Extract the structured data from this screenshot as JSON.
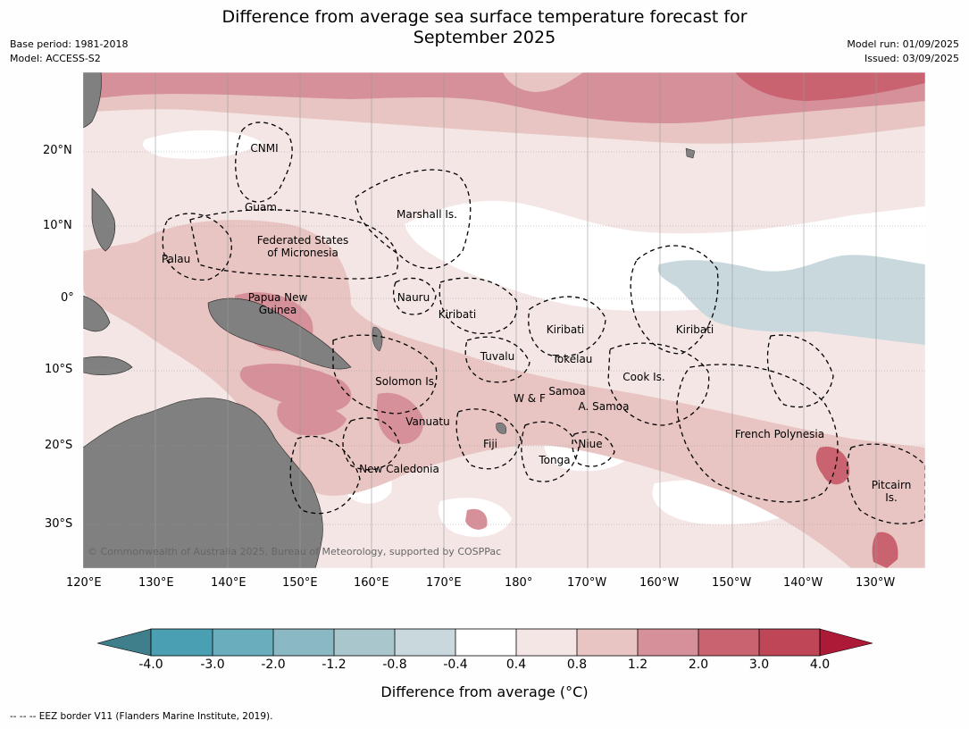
{
  "title_line1": "Difference from average sea surface temperature forecast for",
  "title_line2": "September 2025",
  "meta_left": {
    "base_period": "Base period: 1981-2018",
    "model": "Model: ACCESS-S2"
  },
  "meta_right": {
    "model_run": "Model run: 01/09/2025",
    "issued": "Issued: 03/09/2025"
  },
  "axes": {
    "lon_ticks": [
      "120°E",
      "130°E",
      "140°E",
      "150°E",
      "160°E",
      "170°E",
      "180°",
      "170°W",
      "160°W",
      "150°W",
      "140°W",
      "130°W"
    ],
    "lat_ticks": [
      "20°N",
      "10°N",
      "0°",
      "10°S",
      "20°S",
      "30°S"
    ]
  },
  "regions": [
    {
      "id": "cnmi",
      "name": "CNMI"
    },
    {
      "id": "guam",
      "name": "Guam"
    },
    {
      "id": "marshall",
      "name": "Marshall Is."
    },
    {
      "id": "fsm1",
      "name": "Federated States"
    },
    {
      "id": "fsm2",
      "name": "of Micronesia"
    },
    {
      "id": "palau",
      "name": "Palau"
    },
    {
      "id": "png1",
      "name": "Papua New"
    },
    {
      "id": "png2",
      "name": "Guinea"
    },
    {
      "id": "nauru",
      "name": "Nauru"
    },
    {
      "id": "kiribati_w",
      "name": "Kiribati"
    },
    {
      "id": "kiribati_c",
      "name": "Kiribati"
    },
    {
      "id": "kiribati_e",
      "name": "Kiribati"
    },
    {
      "id": "tuvalu",
      "name": "Tuvalu"
    },
    {
      "id": "tokelau",
      "name": "Tokelau"
    },
    {
      "id": "cook",
      "name": "Cook Is."
    },
    {
      "id": "solomon",
      "name": "Solomon Is."
    },
    {
      "id": "wf",
      "name": "W & F"
    },
    {
      "id": "samoa",
      "name": "Samoa"
    },
    {
      "id": "asamoa",
      "name": "A. Samoa"
    },
    {
      "id": "vanuatu",
      "name": "Vanuatu"
    },
    {
      "id": "fiji",
      "name": "Fiji"
    },
    {
      "id": "niue",
      "name": "Niue"
    },
    {
      "id": "tonga",
      "name": "Tonga"
    },
    {
      "id": "frpoly",
      "name": "French Polynesia"
    },
    {
      "id": "newcal",
      "name": "New Caledonia"
    },
    {
      "id": "pitcairn1",
      "name": "Pitcairn"
    },
    {
      "id": "pitcairn2",
      "name": "Is."
    }
  ],
  "copyright": "© Commonwealth of Australia 2025, Bureau of Meteorology, supported by COSPPac",
  "colorbar": {
    "ticks": [
      "-4.0",
      "-3.0",
      "-2.0",
      "-1.2",
      "-0.8",
      "-0.4",
      "0.4",
      "0.8",
      "1.2",
      "2.0",
      "3.0",
      "4.0"
    ],
    "colors": [
      "#3f7f8c",
      "#4a9fb2",
      "#6aadbc",
      "#8ab8c3",
      "#a9c6cc",
      "#c9d8dd",
      "#ffffff",
      "#f4e6e5",
      "#e8c5c2",
      "#d6909a",
      "#c9636f",
      "#bf4656",
      "#ad1a37"
    ],
    "title": "Difference from average (°C)"
  },
  "footer": "--  --  -- EEZ border V11 (Flanders Marine Institute, 2019)."
}
